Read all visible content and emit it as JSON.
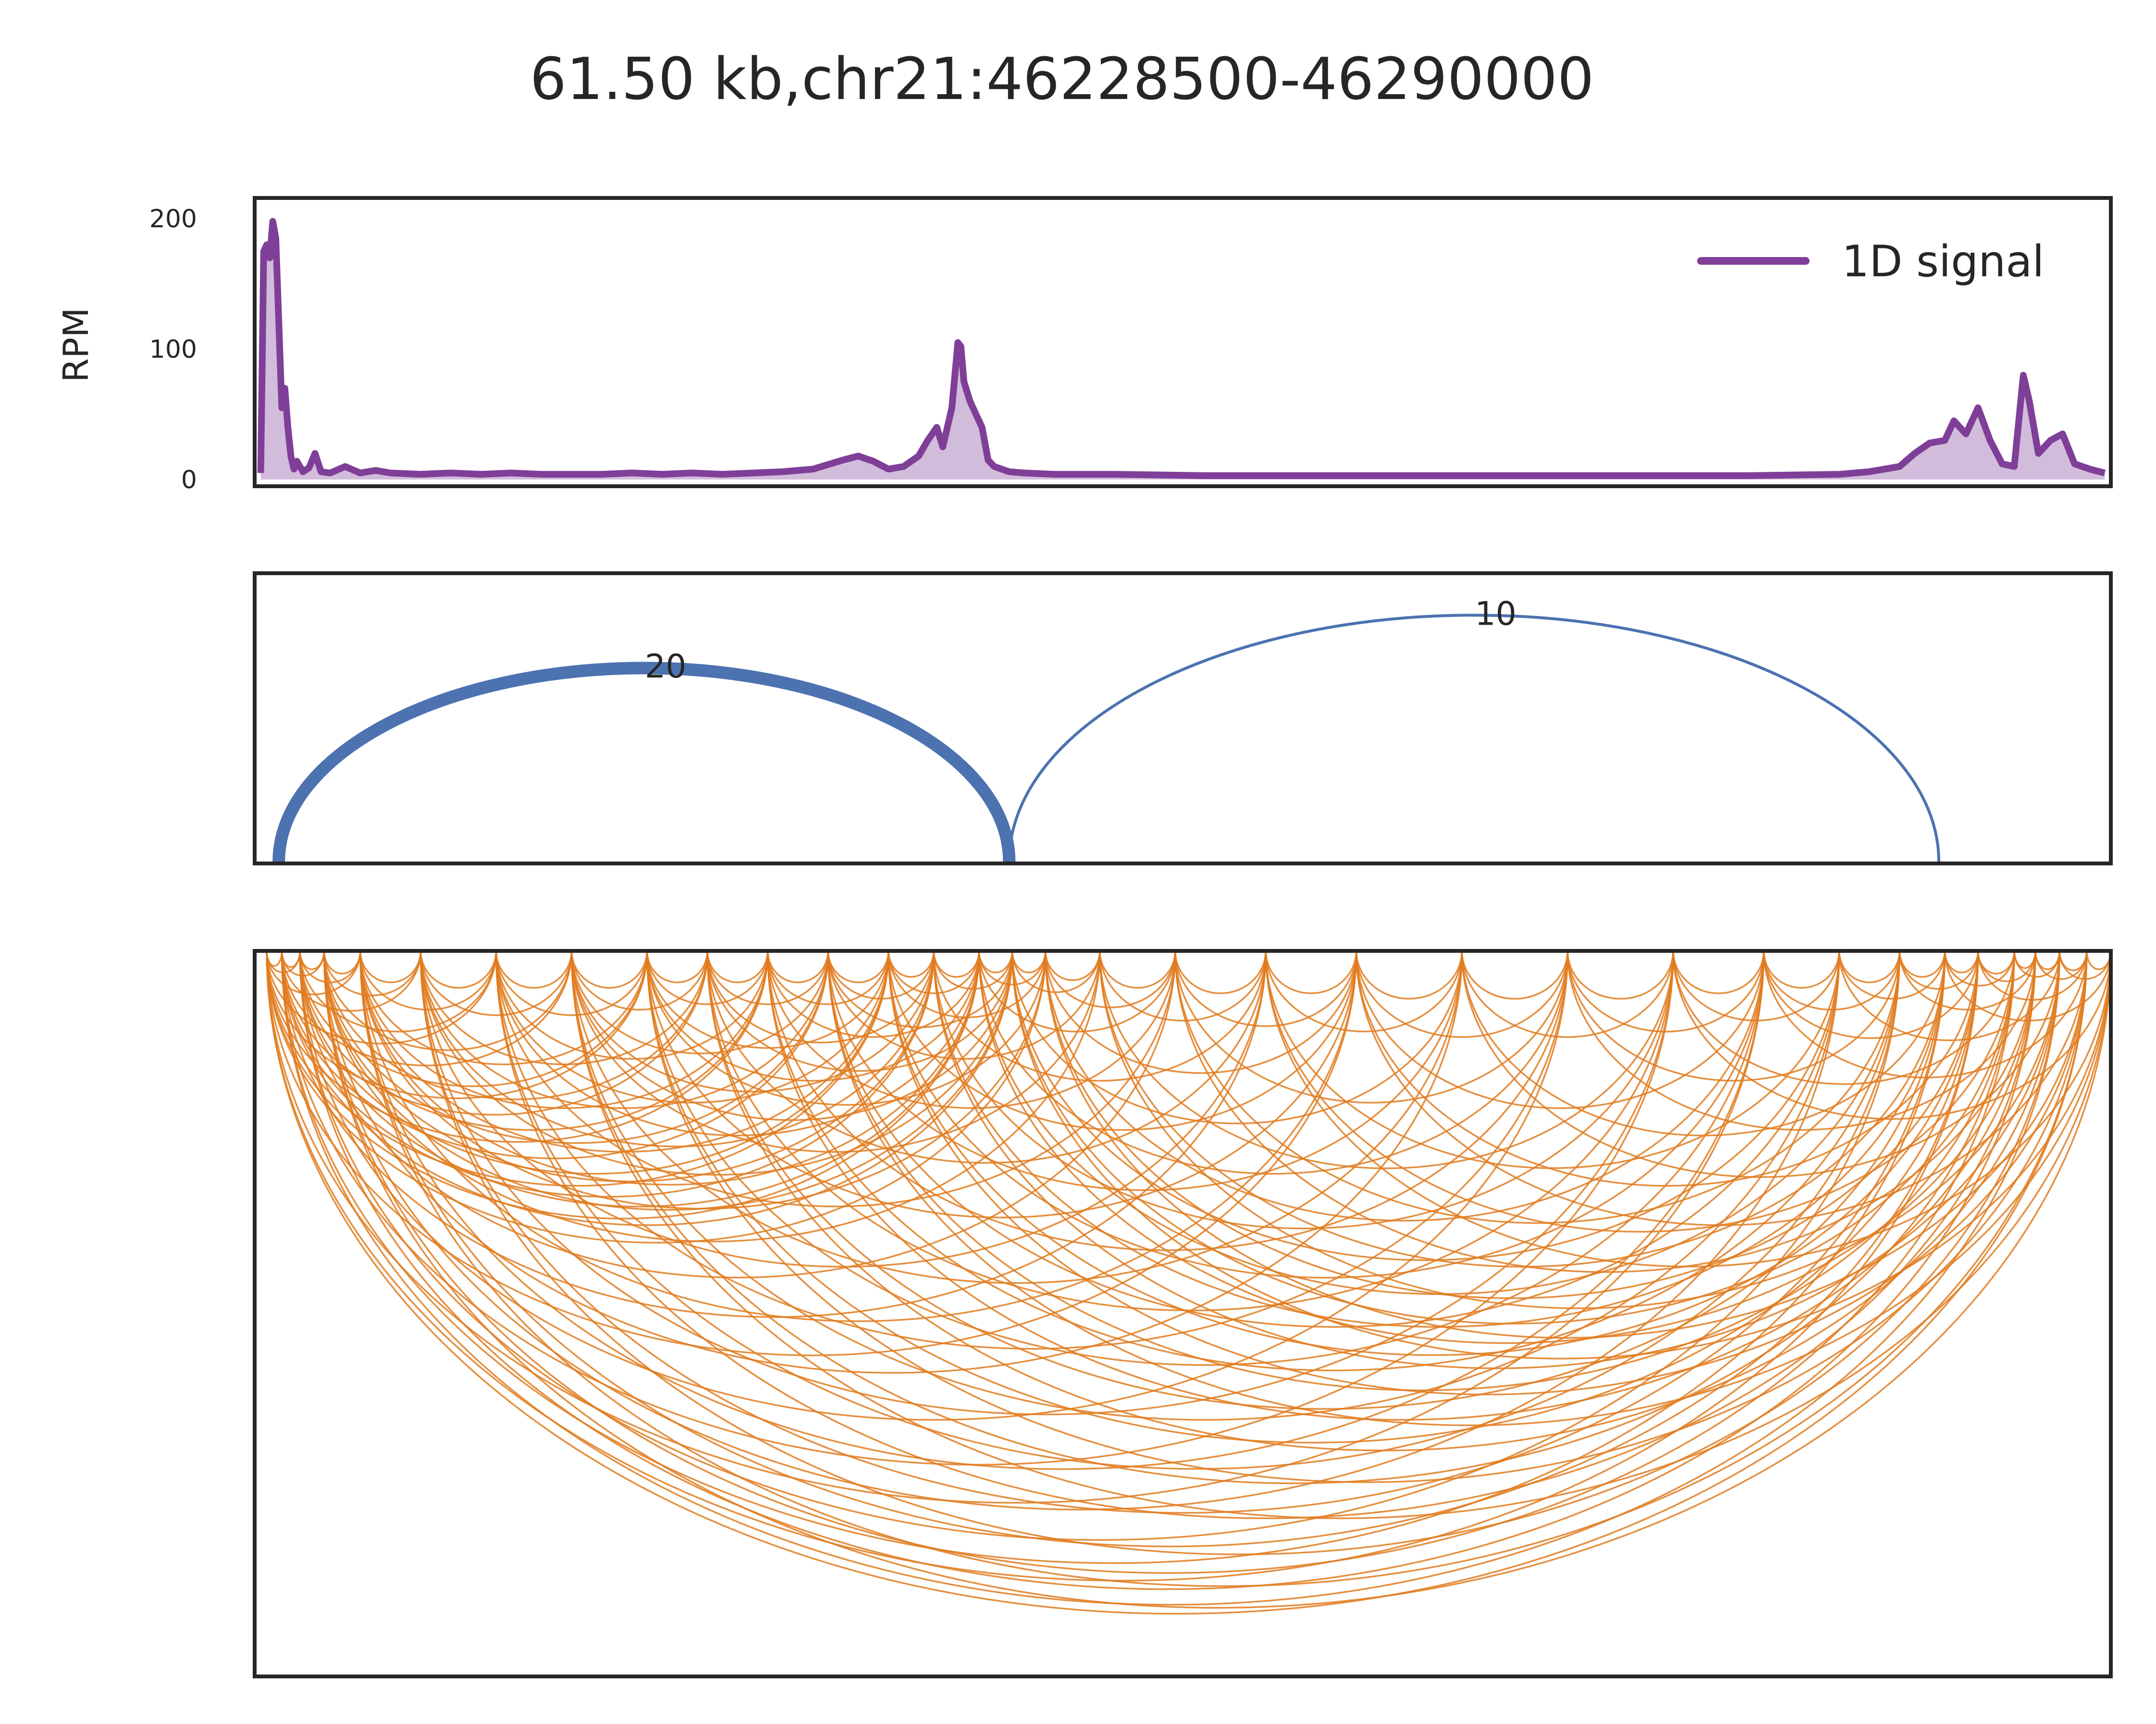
{
  "colors": {
    "signal": "#7f3f98",
    "loop_arc": "#4c72b0",
    "contact_arc": "#e07b1f"
  },
  "chart_data": [
    {
      "type": "line",
      "title": "61.50 kb,chr21:46228500-46290000",
      "ylabel": "RPM",
      "xlim": [
        46228500,
        46290000
      ],
      "ylim": [
        0,
        210
      ],
      "yticks": [
        0,
        100,
        200
      ],
      "legend": {
        "label": "1D signal",
        "position": "top-right"
      },
      "series": [
        {
          "name": "1D signal",
          "points": [
            [
              46228700,
              5
            ],
            [
              46228800,
              175
            ],
            [
              46228900,
              180
            ],
            [
              46229000,
              170
            ],
            [
              46229100,
              198
            ],
            [
              46229200,
              185
            ],
            [
              46229300,
              120
            ],
            [
              46229400,
              55
            ],
            [
              46229500,
              70
            ],
            [
              46229600,
              40
            ],
            [
              46229700,
              18
            ],
            [
              46229800,
              8
            ],
            [
              46229900,
              14
            ],
            [
              46230100,
              6
            ],
            [
              46230300,
              9
            ],
            [
              46230500,
              20
            ],
            [
              46230700,
              6
            ],
            [
              46231000,
              5
            ],
            [
              46231500,
              10
            ],
            [
              46232000,
              5
            ],
            [
              46232500,
              7
            ],
            [
              46233000,
              5
            ],
            [
              46234000,
              4
            ],
            [
              46235000,
              5
            ],
            [
              46236000,
              4
            ],
            [
              46237000,
              5
            ],
            [
              46238000,
              4
            ],
            [
              46239000,
              4
            ],
            [
              46240000,
              4
            ],
            [
              46241000,
              5
            ],
            [
              46242000,
              4
            ],
            [
              46243000,
              5
            ],
            [
              46244000,
              4
            ],
            [
              46245000,
              5
            ],
            [
              46246000,
              6
            ],
            [
              46247000,
              8
            ],
            [
              46248000,
              15
            ],
            [
              46248500,
              18
            ],
            [
              46249000,
              14
            ],
            [
              46249500,
              8
            ],
            [
              46250000,
              10
            ],
            [
              46250500,
              18
            ],
            [
              46250800,
              30
            ],
            [
              46251100,
              40
            ],
            [
              46251300,
              25
            ],
            [
              46251600,
              55
            ],
            [
              46251800,
              105
            ],
            [
              46251900,
              102
            ],
            [
              46252000,
              75
            ],
            [
              46252200,
              60
            ],
            [
              46252400,
              50
            ],
            [
              46252600,
              40
            ],
            [
              46252800,
              15
            ],
            [
              46253000,
              10
            ],
            [
              46253500,
              6
            ],
            [
              46254000,
              5
            ],
            [
              46255000,
              4
            ],
            [
              46257000,
              4
            ],
            [
              46260000,
              3
            ],
            [
              46263000,
              3
            ],
            [
              46266000,
              3
            ],
            [
              46269000,
              3
            ],
            [
              46272000,
              3
            ],
            [
              46275000,
              3
            ],
            [
              46278000,
              3
            ],
            [
              46281000,
              4
            ],
            [
              46282000,
              6
            ],
            [
              46283000,
              10
            ],
            [
              46283500,
              20
            ],
            [
              46284000,
              28
            ],
            [
              46284500,
              30
            ],
            [
              46284800,
              45
            ],
            [
              46285200,
              35
            ],
            [
              46285600,
              55
            ],
            [
              46286000,
              30
            ],
            [
              46286400,
              12
            ],
            [
              46286800,
              10
            ],
            [
              46287100,
              80
            ],
            [
              46287300,
              60
            ],
            [
              46287600,
              20
            ],
            [
              46288000,
              30
            ],
            [
              46288400,
              35
            ],
            [
              46288800,
              12
            ],
            [
              46289300,
              8
            ],
            [
              46289800,
              5
            ]
          ]
        }
      ]
    },
    {
      "type": "arc",
      "xlim": [
        46228500,
        46290000
      ],
      "arcs": [
        {
          "start": 46229300,
          "end": 46253500,
          "label": "20"
        },
        {
          "start": 46253500,
          "end": 46284300,
          "label": "10"
        }
      ]
    },
    {
      "type": "arc",
      "xlim": [
        46228500,
        46290000
      ],
      "direction": "down",
      "anchors": [
        46228900,
        46229400,
        46230000,
        46230800,
        46232000,
        46234000,
        46236500,
        46239000,
        46241500,
        46243500,
        46245500,
        46247500,
        46249500,
        46251000,
        46252500,
        46253600,
        46254700,
        46256500,
        46259000,
        46262000,
        46265000,
        46268500,
        46272000,
        46275500,
        46278500,
        46281000,
        46283000,
        46284500,
        46285600,
        46286800,
        46287500,
        46288300,
        46289200,
        46290000
      ]
    }
  ]
}
